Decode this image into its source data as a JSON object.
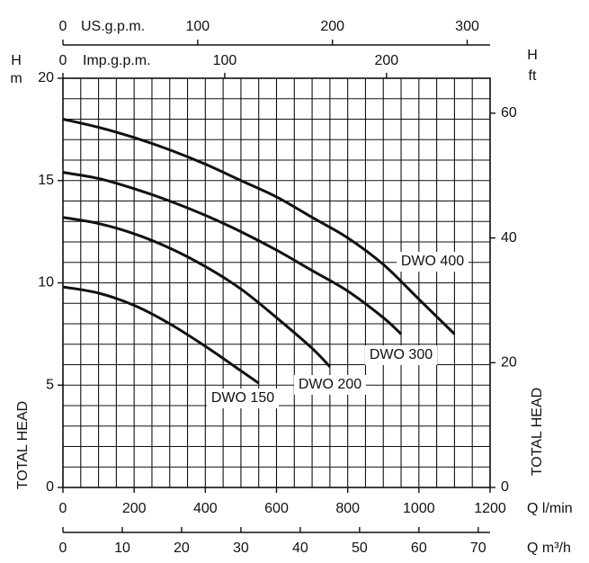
{
  "chart_data": {
    "type": "line",
    "x_label": "Q l/min",
    "y_label": "TOTAL HEAD",
    "y_symbol": "H",
    "y_unit": "m",
    "xlim": [
      0,
      1200
    ],
    "xticks": [
      0,
      200,
      400,
      600,
      800,
      1000,
      1200
    ],
    "ylim": [
      0,
      20
    ],
    "yticks": [
      0,
      5,
      10,
      15,
      20
    ],
    "grid": true,
    "xgrid_step": 50,
    "ygrid_step": 1,
    "x_m3h": {
      "label": "Q m³/h",
      "lim": [
        0,
        72
      ],
      "ticks": [
        0,
        10,
        20,
        30,
        40,
        50,
        60,
        70
      ]
    },
    "x_usgpm": {
      "label": "US.g.p.m.",
      "lim": [
        0,
        317
      ],
      "ticks": [
        0,
        100,
        200,
        300
      ]
    },
    "x_impgpm": {
      "label": "Imp.g.p.m.",
      "lim": [
        0,
        264
      ],
      "ticks": [
        0,
        100,
        200
      ]
    },
    "y_ft": {
      "symbol": "H",
      "unit": "ft",
      "label": "TOTAL HEAD",
      "lim": [
        0,
        65.6
      ],
      "ticks": [
        0,
        20,
        40,
        60
      ]
    },
    "series": [
      {
        "name": "DWO 400",
        "color": "#111111",
        "x": [
          0,
          100,
          200,
          300,
          400,
          500,
          600,
          700,
          800,
          900,
          1000,
          1100
        ],
        "values": [
          18,
          17.6,
          17.1,
          16.5,
          15.8,
          15.0,
          14.2,
          13.2,
          12.2,
          10.9,
          9.2,
          7.5
        ]
      },
      {
        "name": "DWO 300",
        "color": "#111111",
        "x": [
          0,
          100,
          200,
          300,
          400,
          500,
          600,
          700,
          800,
          900,
          950
        ],
        "values": [
          15.4,
          15.1,
          14.6,
          14.0,
          13.3,
          12.5,
          11.6,
          10.6,
          9.6,
          8.3,
          7.5
        ]
      },
      {
        "name": "DWO 200",
        "color": "#111111",
        "x": [
          0,
          100,
          200,
          300,
          400,
          500,
          600,
          700,
          750
        ],
        "values": [
          13.2,
          12.9,
          12.4,
          11.7,
          10.8,
          9.7,
          8.3,
          6.8,
          5.9
        ]
      },
      {
        "name": "DWO 150",
        "color": "#111111",
        "x": [
          0,
          100,
          200,
          300,
          400,
          500,
          550
        ],
        "values": [
          9.8,
          9.5,
          8.9,
          8.0,
          6.9,
          5.7,
          5.1
        ]
      }
    ]
  }
}
